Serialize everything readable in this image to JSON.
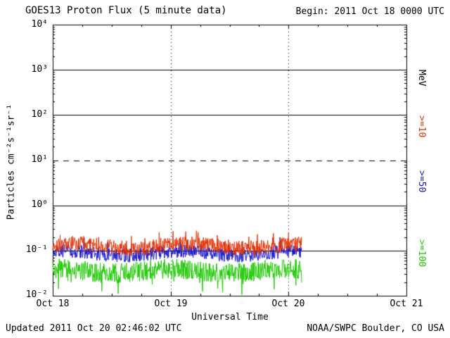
{
  "header": {
    "title": "GOES13 Proton Flux (5 minute data)",
    "begin": "Begin: 2011 Oct 18 0000 UTC"
  },
  "footer": {
    "updated": "Updated 2011 Oct 20 02:46:02 UTC",
    "credit": "NOAA/SWPC Boulder, CO USA"
  },
  "chart_data": {
    "type": "line",
    "title": "GOES13 Proton Flux (5 minute data)",
    "xlabel": "Universal Time",
    "ylabel": "Particles cm⁻²s⁻¹sr⁻¹",
    "y_scale": "log10",
    "ylim": [
      0.01,
      10000
    ],
    "y_tick_labels": [
      "10⁴",
      "10³",
      "10²",
      "10¹",
      "10⁰",
      "10⁻¹",
      "10⁻²"
    ],
    "x_tick_labels": [
      "Oct 18",
      "Oct 19",
      "Oct 20",
      "Oct 21"
    ],
    "x_span_days": 3,
    "sample_interval_minutes": 5,
    "data_end_day_fraction": 0.705,
    "grid": {
      "solid_log10": [
        3,
        2,
        0,
        -1
      ],
      "dashed_log10": [
        1
      ],
      "vertical_dotted_days": [
        1,
        2
      ]
    },
    "unit_label": "MeV",
    "series": [
      {
        "name": ">=10",
        "color": "#e33000",
        "baseline_log10": -0.9,
        "noise_log10": 0.17,
        "spike_chance": 0.05,
        "spike_log10": 0.22,
        "spike_dir": 1,
        "seed": 101,
        "approx_flux_range": [
          0.07,
          0.3
        ]
      },
      {
        "name": ">=50",
        "color": "#1212cc",
        "baseline_log10": -1.06,
        "noise_log10": 0.15,
        "spike_chance": 0.04,
        "spike_log10": 0.18,
        "spike_dir": 1,
        "seed": 202,
        "approx_flux_range": [
          0.05,
          0.15
        ]
      },
      {
        "name": ">=100",
        "color": "#1ec800",
        "baseline_log10": -1.45,
        "noise_log10": 0.22,
        "spike_chance": 0.06,
        "spike_log10": 0.3,
        "spike_dir": -1,
        "seed": 303,
        "approx_flux_range": [
          0.015,
          0.08
        ]
      }
    ]
  }
}
